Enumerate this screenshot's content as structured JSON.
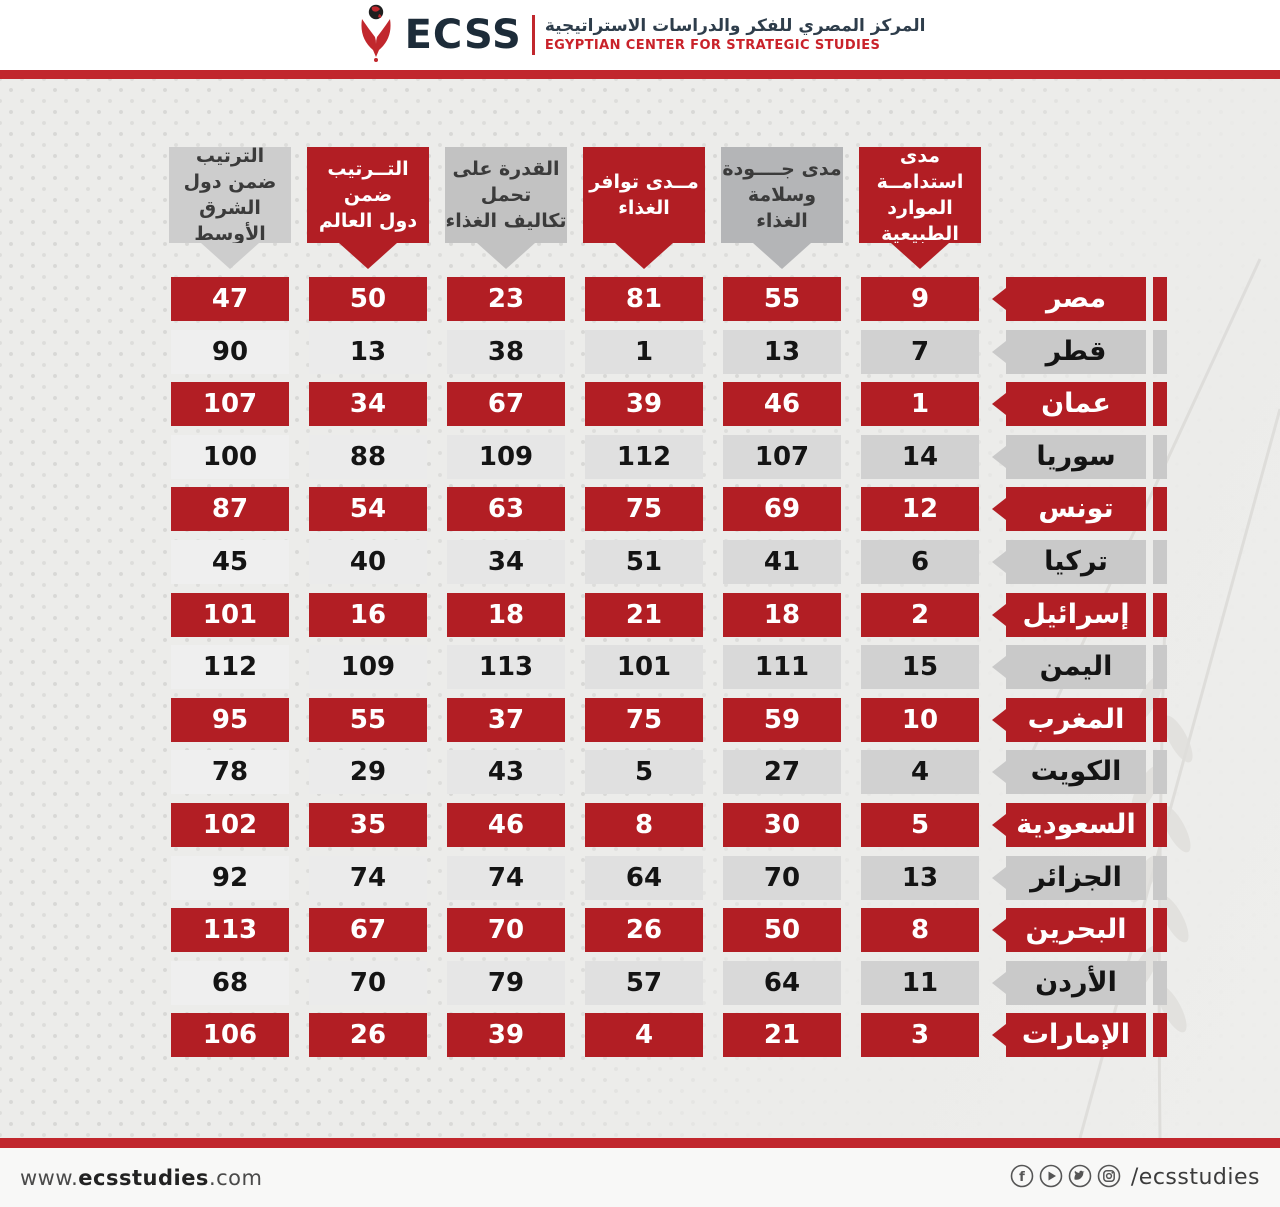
{
  "header": {
    "logo_text": "ECSS",
    "org_name_ar": "المركز المصري للفكر والدراسات الاستراتيجية",
    "org_name_en": "EGYPTIAN CENTER FOR STRATEGIC STUDIES"
  },
  "colors": {
    "accent_red": "#c1272d",
    "cell_red": "#b21e24",
    "gray_country": "#c9c9c9",
    "bubble_gray_dark": "#b4b5b7",
    "bubble_gray_mid": "#c2c2c2",
    "bubble_gray_light": "#cdcdcd"
  },
  "table": {
    "columns": [
      {
        "key": "me_rank",
        "style": "gray",
        "lines": [
          "الترتيب ضمن دول",
          "الشرق الأوسط"
        ]
      },
      {
        "key": "world_rank",
        "style": "red",
        "lines": [
          "التــرتيب ضمن",
          "دول العالم"
        ]
      },
      {
        "key": "affordability",
        "style": "gray",
        "lines": [
          "القدرة على تحمل",
          "تكاليف الغذاء"
        ]
      },
      {
        "key": "availability",
        "style": "red",
        "lines": [
          "مــدى توافر",
          "الغذاء"
        ]
      },
      {
        "key": "quality",
        "style": "gray",
        "lines": [
          "مدى جــــودة",
          "وسلامة الغذاء"
        ]
      },
      {
        "key": "natural_resources",
        "style": "red",
        "lines": [
          "مدى استدامــة",
          "الموارد الطبيعية"
        ]
      }
    ],
    "rows": [
      {
        "country": "مصر",
        "style": "red",
        "values": [
          47,
          50,
          23,
          81,
          55,
          9
        ]
      },
      {
        "country": "قطر",
        "style": "gray",
        "values": [
          90,
          13,
          38,
          1,
          13,
          7
        ]
      },
      {
        "country": "عمان",
        "style": "red",
        "values": [
          107,
          34,
          67,
          39,
          46,
          1
        ]
      },
      {
        "country": "سوريا",
        "style": "gray",
        "values": [
          100,
          88,
          109,
          112,
          107,
          14
        ]
      },
      {
        "country": "تونس",
        "style": "red",
        "values": [
          87,
          54,
          63,
          75,
          69,
          12
        ]
      },
      {
        "country": "تركيا",
        "style": "gray",
        "values": [
          45,
          40,
          34,
          51,
          41,
          6
        ]
      },
      {
        "country": "إسرائيل",
        "style": "red",
        "values": [
          101,
          16,
          18,
          21,
          18,
          2
        ]
      },
      {
        "country": "اليمن",
        "style": "gray",
        "values": [
          112,
          109,
          113,
          101,
          111,
          15
        ]
      },
      {
        "country": "المغرب",
        "style": "red",
        "values": [
          95,
          55,
          37,
          75,
          59,
          10
        ]
      },
      {
        "country": "الكويت",
        "style": "gray",
        "values": [
          78,
          29,
          43,
          5,
          27,
          4
        ]
      },
      {
        "country": "السعودية",
        "style": "red",
        "values": [
          102,
          35,
          46,
          8,
          30,
          5
        ]
      },
      {
        "country": "الجزائر",
        "style": "gray",
        "values": [
          92,
          74,
          74,
          64,
          70,
          13
        ]
      },
      {
        "country": "البحرين",
        "style": "red",
        "values": [
          113,
          67,
          70,
          26,
          50,
          8
        ]
      },
      {
        "country": "الأردن",
        "style": "gray",
        "values": [
          68,
          70,
          79,
          57,
          64,
          11
        ]
      },
      {
        "country": "الإمارات",
        "style": "red",
        "values": [
          106,
          26,
          39,
          4,
          21,
          3
        ]
      }
    ]
  },
  "footer": {
    "website_prefix": "www.",
    "website_bold": "ecsstudies",
    "website_suffix": ".com",
    "social_icons": [
      "facebook",
      "youtube",
      "twitter",
      "instagram"
    ],
    "social_handle": "/ecsstudies"
  }
}
